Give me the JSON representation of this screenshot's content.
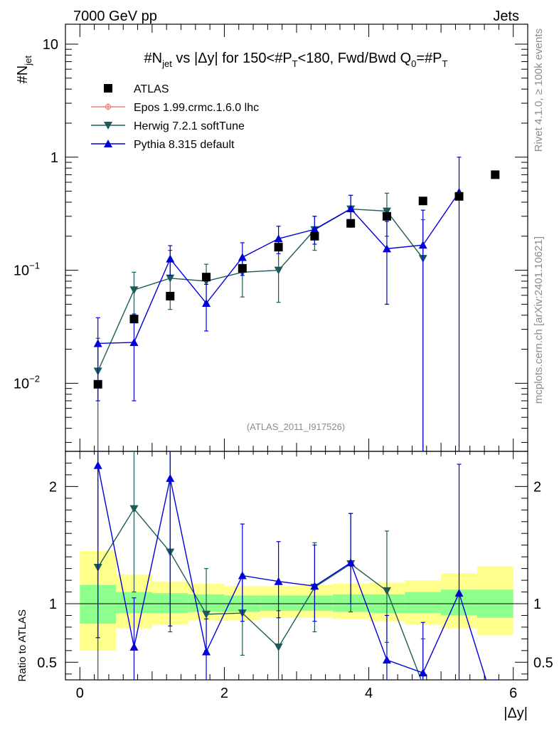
{
  "header": {
    "energy_label": "7000 GeV pp",
    "category_label": "Jets"
  },
  "side_labels": {
    "rivet": "Rivet 4.1.0, ≥ 100k events",
    "source": "mcplots.cern.ch [arXiv:2401.10621]"
  },
  "watermark": "(ATLAS_2011_I917526)",
  "colors": {
    "atlas": "#000000",
    "epos": "#f08080",
    "herwig": "#1e5a5a",
    "pythia": "#0000dd",
    "band_inner": "#8cff8c",
    "band_outer": "#ffff8c"
  },
  "chart_data": [
    {
      "panel": "main",
      "type": "scatter",
      "title_parts": {
        "pre": "#N",
        "sub1": "jet",
        "mid": " vs |Δy| for 150<#P",
        "sub2": "T",
        "post": "<180, Fwd/Bwd Q",
        "sub3": "0",
        "eq": "=#P",
        "sub4": "T"
      },
      "ylabel": "#N",
      "ylabel_sub": "jet",
      "yscale": "log",
      "ylim": [
        0.0025,
        15
      ],
      "xlim": [
        -0.2,
        6.2
      ],
      "yticks": [
        {
          "value": 0.01,
          "base": "10",
          "exp": "−2"
        },
        {
          "value": 0.1,
          "base": "10",
          "exp": "−1"
        },
        {
          "value": 1,
          "base": "1",
          "exp": ""
        },
        {
          "value": 10,
          "base": "10",
          "exp": ""
        }
      ],
      "legend": [
        {
          "key": "atlas",
          "label": "ATLAS"
        },
        {
          "key": "epos",
          "label": "Epos 1.99.crmc.1.6.0 lhc"
        },
        {
          "key": "herwig",
          "label": "Herwig 7.2.1 softTune"
        },
        {
          "key": "pythia",
          "label": "Pythia 8.315 default"
        }
      ],
      "series": [
        {
          "name": "ATLAS",
          "key": "atlas",
          "x": [
            0.25,
            0.75,
            1.25,
            1.75,
            2.25,
            2.75,
            3.25,
            3.75,
            4.25,
            4.75,
            5.25,
            5.75
          ],
          "y": [
            0.0098,
            0.037,
            0.059,
            0.087,
            0.104,
            0.16,
            0.2,
            0.26,
            0.3,
            0.41,
            0.45,
            0.7
          ]
        },
        {
          "name": "Herwig 7.2.1 softTune",
          "key": "herwig",
          "x": [
            0.25,
            0.75,
            1.25,
            1.75,
            2.25,
            2.75,
            3.25,
            3.75,
            4.25,
            4.75
          ],
          "y": [
            0.0128,
            0.067,
            0.085,
            0.08,
            0.096,
            0.1,
            0.228,
            0.348,
            0.333,
            0.127
          ],
          "err_lo": [
            0.0002,
            0.04,
            0.045,
            0.052,
            0.058,
            0.052,
            0.15,
            0.24,
            0.2,
            0.001
          ],
          "err_hi": [
            0.025,
            0.096,
            0.15,
            0.113,
            0.13,
            0.15,
            0.3,
            0.46,
            0.48,
            0.28
          ]
        },
        {
          "name": "Pythia 8.315 default",
          "key": "pythia",
          "x": [
            0.25,
            0.75,
            1.25,
            1.75,
            2.25,
            2.75,
            3.25,
            3.75,
            4.25,
            4.75,
            5.25
          ],
          "y": [
            0.0225,
            0.023,
            0.126,
            0.051,
            0.13,
            0.19,
            0.23,
            0.35,
            0.155,
            0.167,
            0.49
          ],
          "err_lo": [
            0.007,
            0.007,
            0.09,
            0.029,
            0.09,
            0.14,
            0.17,
            0.26,
            0.05,
            0.001,
            0.001
          ],
          "err_hi": [
            0.038,
            0.041,
            0.165,
            0.075,
            0.175,
            0.245,
            0.3,
            0.46,
            0.27,
            0.34,
            1.0
          ]
        }
      ]
    },
    {
      "panel": "ratio",
      "type": "line",
      "ylabel": "Ratio to ATLAS",
      "xlabel": "|Δy|",
      "ylim": [
        0.35,
        2.3
      ],
      "xlim": [
        -0.2,
        6.2
      ],
      "yticks": [
        0.5,
        1,
        2
      ],
      "xticks": [
        0,
        2,
        4,
        6
      ],
      "bins": [
        [
          0,
          0.5
        ],
        [
          0.5,
          1
        ],
        [
          1,
          1.5
        ],
        [
          1.5,
          2
        ],
        [
          2,
          2.5
        ],
        [
          2.5,
          3
        ],
        [
          3,
          3.5
        ],
        [
          3.5,
          4
        ],
        [
          4,
          4.5
        ],
        [
          4.5,
          5
        ],
        [
          5,
          5.5
        ],
        [
          5.5,
          6
        ]
      ],
      "band_inner_lo": [
        0.83,
        0.92,
        0.92,
        0.93,
        0.93,
        0.94,
        0.94,
        0.93,
        0.92,
        0.92,
        0.9,
        0.88
      ],
      "band_inner_hi": [
        1.16,
        1.1,
        1.09,
        1.08,
        1.07,
        1.07,
        1.07,
        1.08,
        1.08,
        1.1,
        1.12,
        1.12
      ],
      "band_outer_lo": [
        0.6,
        0.79,
        0.82,
        0.86,
        0.86,
        0.88,
        0.88,
        0.87,
        0.85,
        0.82,
        0.79,
        0.73
      ],
      "band_outer_hi": [
        1.45,
        1.25,
        1.19,
        1.17,
        1.15,
        1.15,
        1.16,
        1.17,
        1.18,
        1.2,
        1.26,
        1.32
      ],
      "series": [
        {
          "name": "Herwig 7.2.1 softTune",
          "key": "herwig",
          "x": [
            0.25,
            0.75,
            1.25,
            1.75,
            2.25,
            2.75,
            3.25,
            3.75,
            4.25,
            4.75
          ],
          "y": [
            1.31,
            1.81,
            1.44,
            0.91,
            0.92,
            0.63,
            1.14,
            1.34,
            1.11,
            0.31
          ],
          "err_lo": [
            0.3,
            1.1,
            0.76,
            0.6,
            0.56,
            0.33,
            0.76,
            0.93,
            0.67,
            0.3
          ],
          "err_hi": [
            2.3,
            2.5,
            2.5,
            1.3,
            1.25,
            0.94,
            1.52,
            1.77,
            1.62,
            0.7
          ]
        },
        {
          "name": "Pythia 8.315 default",
          "key": "pythia",
          "x": [
            0.25,
            0.75,
            1.25,
            1.75,
            2.25,
            2.75,
            3.25,
            3.75,
            4.25,
            4.75,
            5.25,
            5.75
          ],
          "y": [
            2.18,
            0.63,
            2.07,
            0.59,
            1.24,
            1.19,
            1.15,
            1.35,
            0.52,
            0.41,
            1.09,
            0.1
          ],
          "err_lo": [
            0.71,
            0.2,
            0.81,
            0.33,
            0.85,
            0.88,
            0.85,
            1.0,
            0.17,
            0.01,
            0.01,
            0.01
          ],
          "err_hi": [
            2.3,
            1.05,
            2.3,
            0.87,
            1.68,
            1.53,
            1.5,
            1.77,
            0.9,
            0.84,
            2.19,
            0.2
          ]
        }
      ]
    }
  ]
}
